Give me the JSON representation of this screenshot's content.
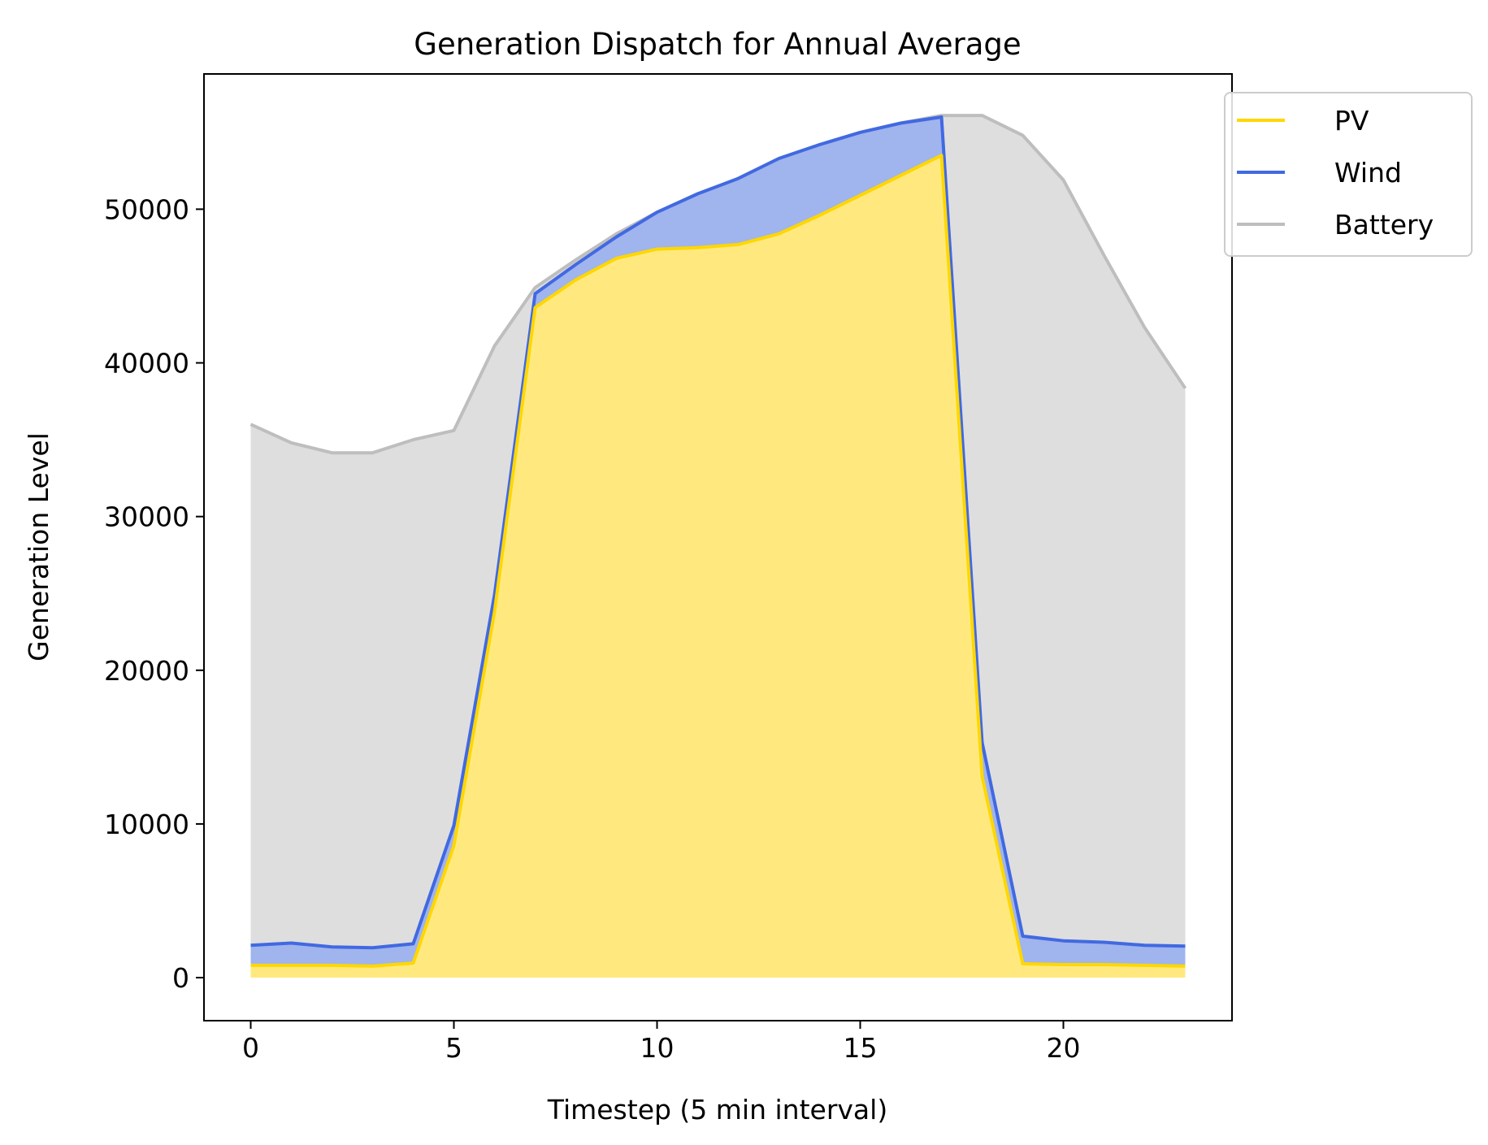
{
  "chart_data": {
    "type": "area",
    "title": "Generation Dispatch for Annual Average",
    "xlabel": "Timestep (5 min interval)",
    "ylabel": "Generation Level",
    "xlim": [
      -1.15,
      24.15
    ],
    "ylim": [
      -2800,
      58800
    ],
    "x_ticks": [
      0,
      5,
      10,
      15,
      20
    ],
    "y_ticks": [
      0,
      10000,
      20000,
      30000,
      40000,
      50000
    ],
    "grid": false,
    "legend_position": "top-right (outside plot area)",
    "stacked": true,
    "x": [
      0,
      1,
      2,
      3,
      4,
      5,
      6,
      7,
      8,
      9,
      10,
      11,
      12,
      13,
      14,
      15,
      16,
      17,
      18,
      19,
      20,
      21,
      22,
      23
    ],
    "series": [
      {
        "name": "PV",
        "color": "#FFD700",
        "fill": "#FFE97F",
        "values": [
          800,
          800,
          800,
          750,
          950,
          8600,
          23800,
          43600,
          45400,
          46800,
          47400,
          47500,
          47700,
          48400,
          49600,
          50900,
          52200,
          53500,
          13100,
          900,
          850,
          850,
          800,
          750
        ],
        "cumulative": [
          800,
          800,
          800,
          750,
          950,
          8600,
          23800,
          43600,
          45400,
          46800,
          47400,
          47500,
          47700,
          48400,
          49600,
          50900,
          52200,
          53500,
          13100,
          900,
          850,
          850,
          800,
          750
        ]
      },
      {
        "name": "Wind",
        "color": "#4169E1",
        "fill": "#A0B4ED",
        "values": [
          1300,
          1450,
          1200,
          1200,
          1250,
          1300,
          1100,
          900,
          1000,
          1400,
          2400,
          3500,
          4300,
          4900,
          4600,
          4100,
          3400,
          2500,
          2200,
          1800,
          1550,
          1450,
          1300,
          1300
        ],
        "cumulative": [
          2100,
          2250,
          2000,
          1950,
          2200,
          9900,
          24900,
          44500,
          46400,
          48200,
          49800,
          51000,
          52000,
          53300,
          54200,
          55000,
          55600,
          56000,
          15300,
          2700,
          2400,
          2300,
          2100,
          2050
        ]
      },
      {
        "name": "Battery",
        "color": "#BEBEBE",
        "fill": "#DEDEDE",
        "values": [
          33900,
          32550,
          32150,
          32200,
          32800,
          25700,
          16200,
          400,
          300,
          200,
          0,
          0,
          0,
          0,
          0,
          0,
          0,
          100,
          40800,
          52100,
          49500,
          44700,
          40200,
          36300
        ],
        "cumulative": [
          36000,
          34800,
          34150,
          34150,
          35000,
          35600,
          41100,
          44900,
          46700,
          48400,
          49800,
          51000,
          52000,
          53300,
          54200,
          55000,
          55600,
          56100,
          56100,
          54800,
          51900,
          47000,
          42300,
          38350
        ]
      }
    ]
  }
}
